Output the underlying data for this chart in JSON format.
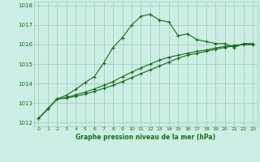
{
  "title": "Graphe pression niveau de la mer (hPa)",
  "bg_color": "#cceee4",
  "line_color": "#1a6b1a",
  "grid_color": "#99ccbb",
  "ylim": [
    1011.8,
    1018.2
  ],
  "xlim": [
    -0.5,
    23.5
  ],
  "yticks": [
    1012,
    1013,
    1014,
    1015,
    1016,
    1017,
    1018
  ],
  "xticks": [
    0,
    1,
    2,
    3,
    4,
    5,
    6,
    7,
    8,
    9,
    10,
    11,
    12,
    13,
    14,
    15,
    16,
    17,
    18,
    19,
    20,
    21,
    22,
    23
  ],
  "line1_x": [
    0,
    1,
    2,
    3,
    4,
    5,
    6,
    7,
    8,
    9,
    10,
    11,
    12,
    13,
    14,
    15,
    16,
    17,
    18,
    19,
    20,
    21,
    22,
    23
  ],
  "line1_y": [
    1012.2,
    1012.7,
    1013.2,
    1013.4,
    1013.7,
    1014.05,
    1014.35,
    1015.05,
    1015.85,
    1016.35,
    1017.0,
    1017.45,
    1017.55,
    1017.25,
    1017.15,
    1016.45,
    1016.55,
    1016.25,
    1016.15,
    1016.05,
    1016.05,
    1015.85,
    1016.05,
    1016.05
  ],
  "line2_x": [
    0,
    1,
    2,
    3,
    4,
    5,
    6,
    7,
    8,
    9,
    10,
    11,
    12,
    13,
    14,
    15,
    16,
    17,
    18,
    19,
    20,
    21,
    22,
    23
  ],
  "line2_y": [
    1012.2,
    1012.7,
    1013.2,
    1013.25,
    1013.35,
    1013.45,
    1013.6,
    1013.75,
    1013.9,
    1014.1,
    1014.3,
    1014.5,
    1014.7,
    1014.9,
    1015.1,
    1015.3,
    1015.45,
    1015.55,
    1015.65,
    1015.75,
    1015.85,
    1015.92,
    1016.0,
    1016.0
  ],
  "line3_x": [
    0,
    1,
    2,
    3,
    4,
    5,
    6,
    7,
    8,
    9,
    10,
    11,
    12,
    13,
    14,
    15,
    16,
    17,
    18,
    19,
    20,
    21,
    22,
    23
  ],
  "line3_y": [
    1012.2,
    1012.7,
    1013.2,
    1013.28,
    1013.42,
    1013.55,
    1013.72,
    1013.9,
    1014.1,
    1014.35,
    1014.58,
    1014.8,
    1015.0,
    1015.2,
    1015.35,
    1015.45,
    1015.55,
    1015.65,
    1015.72,
    1015.82,
    1015.9,
    1015.96,
    1016.0,
    1016.0
  ],
  "ylabel_fontsize": 5.0,
  "xlabel_fontsize": 5.5,
  "tick_fontsize": 5.0
}
